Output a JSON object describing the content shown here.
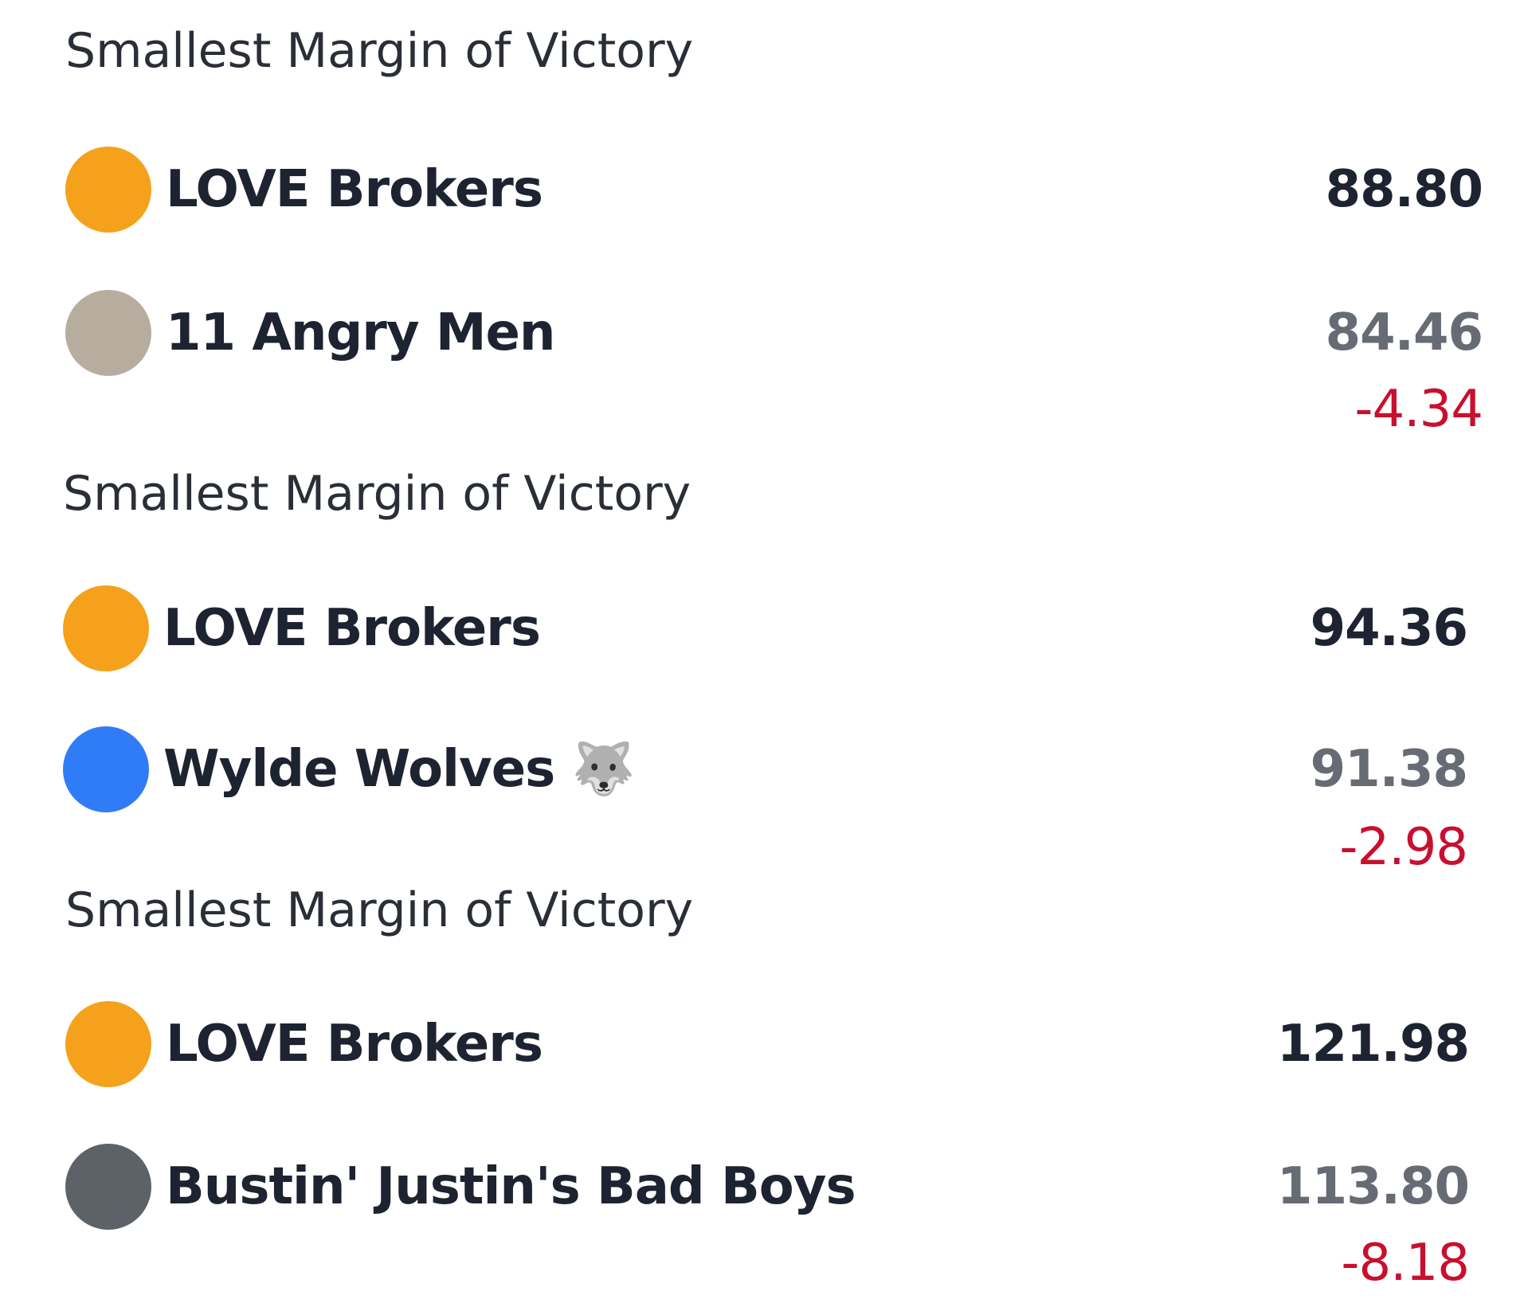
{
  "sections": [
    {
      "title": "Smallest Margin of Victory",
      "teams": [
        {
          "name": "LOVE Brokers",
          "score": "88.80"
        },
        {
          "name": "11 Angry Men",
          "score": "84.46"
        }
      ],
      "margin": "-4.34"
    },
    {
      "title": "Smallest Margin of Victory",
      "teams": [
        {
          "name": "LOVE Brokers",
          "score": "94.36"
        },
        {
          "name": "Wylde Wolves 🐺",
          "score": "91.38"
        }
      ],
      "margin": "-2.98"
    },
    {
      "title": "Smallest Margin of Victory",
      "teams": [
        {
          "name": "LOVE Brokers",
          "score": "121.98"
        },
        {
          "name": "Bustin' Justin's Bad Boys",
          "score": "113.80"
        }
      ],
      "margin": "-8.18"
    }
  ]
}
